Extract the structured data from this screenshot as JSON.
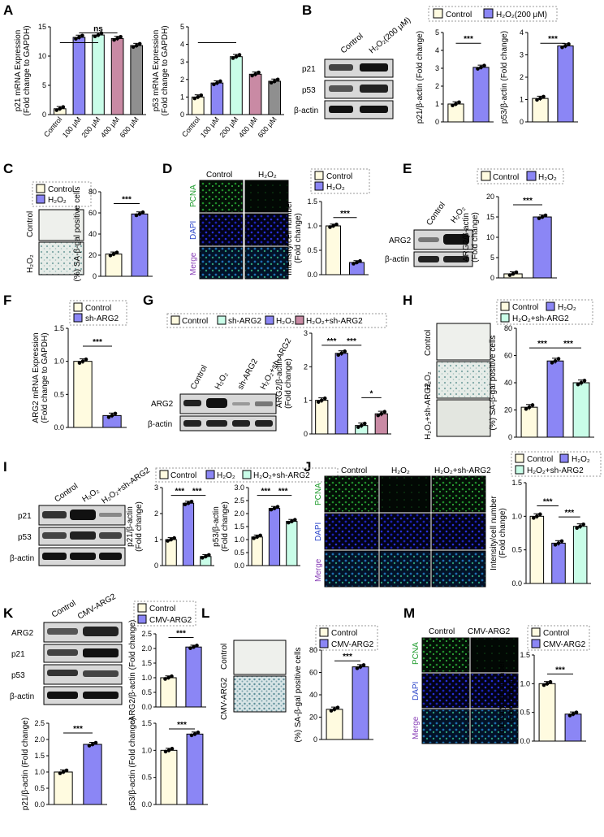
{
  "colors": {
    "control": "#fffbe0",
    "h2o2": "#8b86f5",
    "p200": "#c9fde8",
    "p400": "#c98aa4",
    "p600": "#8f8f8f",
    "sharg2": "#c9fde8",
    "h2o2_sharg2": "#c98aa4",
    "rescue": "#c9fde8",
    "cmv": "#8b86f5",
    "fluor_green": "#0c5a12",
    "fluor_blue": "#10127a",
    "stain_bg": "#eef0ec"
  },
  "labels": {
    "A": "A",
    "B": "B",
    "C": "C",
    "D": "D",
    "E": "E",
    "F": "F",
    "G": "G",
    "H": "H",
    "I": "I",
    "J": "J",
    "K": "K",
    "L": "L",
    "M": "M"
  },
  "common": {
    "control": "Control",
    "h2o2": "H₂O₂",
    "h2o2_200": "H₂O₂(200 μM)",
    "sh_arg2": "sh-ARG2",
    "h2o2_sh_arg2": "H₂O₂+sh-ARG2",
    "cmv_arg2": "CMV-ARG2",
    "pcna": "PCNA",
    "dapi": "DAPI",
    "merge": "Merge",
    "p21": "p21",
    "p53": "p53",
    "bactin": "β-actin",
    "arg2": "ARG2",
    "sig3": "***",
    "sig1": "*",
    "ns": "ns"
  },
  "chart_data": [
    {
      "panel": "A1",
      "type": "bar",
      "categories": [
        "Control",
        "100 μM",
        "200 μM",
        "400 μM",
        "600 μM"
      ],
      "values": [
        1.0,
        13.2,
        13.6,
        13.0,
        11.8
      ],
      "ylabel": [
        "p21 mRNA Expression",
        "(Fold change to GAPDH)"
      ],
      "ylim": [
        0,
        15
      ],
      "yticks": [
        0,
        5,
        10,
        15
      ]
    },
    {
      "panel": "A2",
      "type": "bar",
      "categories": [
        "Control",
        "100 μM",
        "200 μM",
        "400 μM",
        "600 μM"
      ],
      "values": [
        1.0,
        1.8,
        3.3,
        2.3,
        1.9
      ],
      "ylabel": [
        "p53 mRNA Expression",
        "(Fold change to GAPDH)"
      ],
      "ylim": [
        0,
        5
      ],
      "yticks": [
        0,
        1,
        2,
        3,
        4,
        5
      ]
    },
    {
      "panel": "B1",
      "type": "bar",
      "categories": [
        "Control",
        "H₂O₂(200 μM)"
      ],
      "values": [
        1.0,
        3.05
      ],
      "ylabel": [
        "p21/β-actin (Fold change)"
      ],
      "ylim": [
        0,
        5
      ],
      "yticks": [
        0,
        1,
        2,
        3,
        4,
        5
      ]
    },
    {
      "panel": "B2",
      "type": "bar",
      "categories": [
        "Control",
        "H₂O₂(200 μM)"
      ],
      "values": [
        1.05,
        3.4
      ],
      "ylabel": [
        "p53/β-actin (Fold change)"
      ],
      "ylim": [
        0,
        4
      ],
      "yticks": [
        0,
        1,
        2,
        3,
        4
      ]
    },
    {
      "panel": "C",
      "type": "bar",
      "categories": [
        "Control",
        "H₂O₂"
      ],
      "values": [
        21,
        59
      ],
      "ylabel": [
        "(%) SA-β-gal positive cells"
      ],
      "ylim": [
        0,
        80
      ],
      "yticks": [
        0,
        20,
        40,
        60,
        80
      ]
    },
    {
      "panel": "D",
      "type": "bar",
      "categories": [
        "Control",
        "H₂O₂"
      ],
      "values": [
        1.0,
        0.25
      ],
      "ylabel": [
        "Intensity/cell number",
        "(Fold change)"
      ],
      "ylim": [
        0,
        1.5
      ],
      "yticks": [
        0,
        0.5,
        1.0,
        1.5
      ]
    },
    {
      "panel": "E",
      "type": "bar",
      "categories": [
        "Control",
        "H₂O₂"
      ],
      "values": [
        1.0,
        15.0
      ],
      "ylabel": [
        "ARG2/β-actin",
        "(Fold change)"
      ],
      "ylim": [
        0,
        20
      ],
      "yticks": [
        0,
        5,
        10,
        15,
        20
      ]
    },
    {
      "panel": "F",
      "type": "bar",
      "categories": [
        "Control",
        "sh-ARG2"
      ],
      "values": [
        1.0,
        0.18
      ],
      "ylabel": [
        "ARG2 mRNA Expression",
        "(Fold change to GAPDH)"
      ],
      "ylim": [
        0,
        1.5
      ],
      "yticks": [
        0,
        0.5,
        1.0,
        1.5
      ]
    },
    {
      "panel": "G",
      "type": "bar",
      "categories": [
        "Control",
        "H₂O₂",
        "sh-ARG2",
        "H₂O₂+sh-ARG2"
      ],
      "values": [
        1.0,
        2.4,
        0.25,
        0.6
      ],
      "ylabel": [
        "ARG2/β-actin",
        "(Fold change)"
      ],
      "ylim": [
        0,
        3
      ],
      "yticks": [
        0,
        1,
        2,
        3
      ]
    },
    {
      "panel": "H",
      "type": "bar",
      "categories": [
        "Control",
        "H₂O₂",
        "H₂O₂+sh-ARG2"
      ],
      "values": [
        22,
        56,
        40
      ],
      "ylabel": [
        "(%) SA-β-gal positive cells"
      ],
      "ylim": [
        0,
        80
      ],
      "yticks": [
        0,
        20,
        40,
        60,
        80
      ]
    },
    {
      "panel": "I1",
      "type": "bar",
      "categories": [
        "Control",
        "H₂O₂",
        "H₂O₂+sh-ARG2"
      ],
      "values": [
        1.0,
        2.4,
        0.35
      ],
      "ylabel": [
        "p21/β-actin",
        "(Fold change)"
      ],
      "ylim": [
        0,
        3
      ],
      "yticks": [
        0,
        1,
        2,
        3
      ]
    },
    {
      "panel": "I2",
      "type": "bar",
      "categories": [
        "Control",
        "H₂O₂",
        "H₂O₂+sh-ARG2"
      ],
      "values": [
        1.1,
        2.2,
        1.7
      ],
      "ylabel": [
        "p53/β-actin",
        "(Fold change)"
      ],
      "ylim": [
        0,
        3
      ],
      "yticks": [
        0,
        0.5,
        1.0,
        1.5,
        2.0,
        2.5,
        3.0
      ]
    },
    {
      "panel": "J",
      "type": "bar",
      "categories": [
        "Control",
        "H₂O₂",
        "H₂O₂+sh-ARG2"
      ],
      "values": [
        1.0,
        0.6,
        0.85
      ],
      "ylabel": [
        "Intensity/cell number",
        "(Fold change)"
      ],
      "ylim": [
        0,
        1.5
      ],
      "yticks": [
        0,
        0.5,
        1.0,
        1.5
      ]
    },
    {
      "panel": "K1",
      "type": "bar",
      "categories": [
        "Control",
        "CMV-ARG2"
      ],
      "values": [
        1.0,
        2.05
      ],
      "ylabel": [
        "ARG2/β-actin (Fold change)"
      ],
      "ylim": [
        0,
        2.5
      ],
      "yticks": [
        0,
        0.5,
        1.0,
        1.5,
        2.0,
        2.5
      ]
    },
    {
      "panel": "K2",
      "type": "bar",
      "categories": [
        "Control",
        "CMV-ARG2"
      ],
      "values": [
        1.0,
        1.85
      ],
      "ylabel": [
        "p21/β-actin (Fold change)"
      ],
      "ylim": [
        0,
        2.5
      ],
      "yticks": [
        0,
        0.5,
        1.0,
        1.5,
        2.0,
        2.5
      ]
    },
    {
      "panel": "K3",
      "type": "bar",
      "categories": [
        "Control",
        "CMV-ARG2"
      ],
      "values": [
        1.0,
        1.3
      ],
      "ylabel": [
        "p53/β-actin (Fold change)"
      ],
      "ylim": [
        0,
        1.5
      ],
      "yticks": [
        0,
        0.5,
        1.0,
        1.5
      ]
    },
    {
      "panel": "L",
      "type": "bar",
      "categories": [
        "Control",
        "CMV-ARG2"
      ],
      "values": [
        27,
        65
      ],
      "ylabel": [
        "(%) SA-β-gal positive cells"
      ],
      "ylim": [
        0,
        80
      ],
      "yticks": [
        0,
        20,
        40,
        60,
        80
      ]
    },
    {
      "panel": "M",
      "type": "bar",
      "categories": [
        "Control",
        "CMV-ARG2"
      ],
      "values": [
        1.0,
        0.47
      ],
      "ylabel": [
        "Intensity/cell number",
        "(Fold change)"
      ],
      "ylim": [
        0,
        1.5
      ],
      "yticks": [
        0,
        0.5,
        1.0,
        1.5
      ]
    }
  ]
}
